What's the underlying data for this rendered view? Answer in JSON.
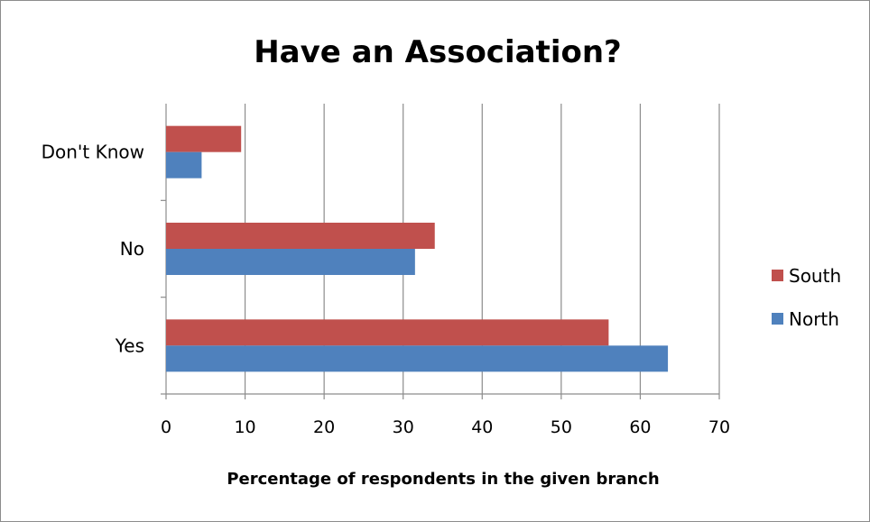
{
  "chart_data": {
    "type": "bar",
    "orientation": "horizontal",
    "title": "Have an Association?",
    "xlabel": "Percentage of respondents in the given branch",
    "ylabel": "",
    "categories": [
      "Yes",
      "No",
      "Don't Know"
    ],
    "series": [
      {
        "name": "North",
        "values": [
          63.5,
          31.5,
          4.5
        ],
        "color": "#4f81bd"
      },
      {
        "name": "South",
        "values": [
          56,
          34,
          9.5
        ],
        "color": "#c0504d"
      }
    ],
    "xlim": [
      0,
      70
    ],
    "xticks": [
      0,
      10,
      20,
      30,
      40,
      50,
      60,
      70
    ],
    "grid": "vertical major gridlines",
    "legend": {
      "position": "right",
      "entries": [
        "South",
        "North"
      ]
    }
  }
}
